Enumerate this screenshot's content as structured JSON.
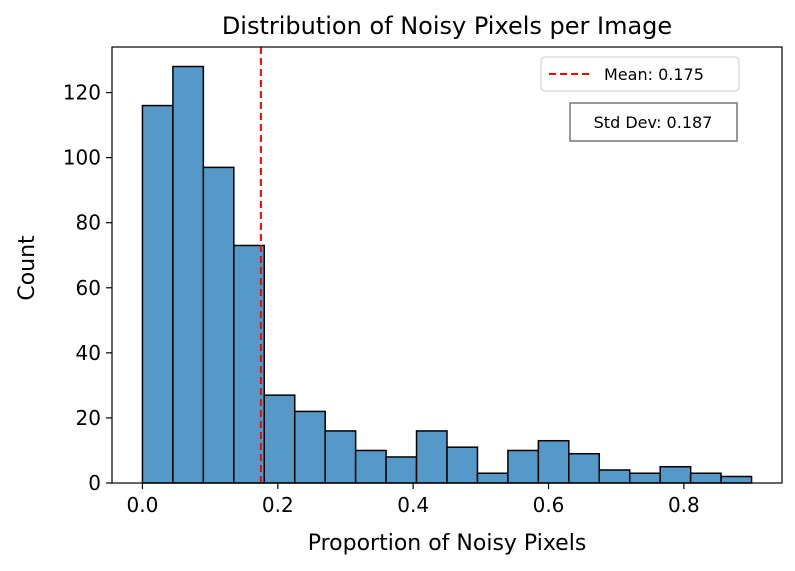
{
  "chart_data": {
    "type": "bar",
    "title": "Distribution of Noisy Pixels per Image",
    "xlabel": "Proportion of Noisy Pixels",
    "ylabel": "Count",
    "xlim": [
      -0.045,
      0.945
    ],
    "ylim": [
      0,
      134
    ],
    "xticks": [
      0.0,
      0.2,
      0.4,
      0.6,
      0.8
    ],
    "xtick_labels": [
      "0.0",
      "0.2",
      "0.4",
      "0.6",
      "0.8"
    ],
    "yticks": [
      0,
      20,
      40,
      60,
      80,
      100,
      120
    ],
    "ytick_labels": [
      "0",
      "20",
      "40",
      "60",
      "80",
      "100",
      "120"
    ],
    "bin_edges": [
      0.0,
      0.045,
      0.09,
      0.135,
      0.18,
      0.225,
      0.27,
      0.315,
      0.36,
      0.405,
      0.45,
      0.495,
      0.54,
      0.585,
      0.63,
      0.675,
      0.72,
      0.765,
      0.81,
      0.855,
      0.9
    ],
    "values": [
      116,
      128,
      97,
      73,
      27,
      22,
      16,
      10,
      8,
      16,
      11,
      3,
      10,
      13,
      9,
      4,
      3,
      5,
      3,
      2
    ],
    "bar_color": "#5499c7",
    "mean": 0.175,
    "mean_color": "#ff0000",
    "legend": {
      "label": "Mean: 0.175",
      "placement": "top-right"
    },
    "annotation": "Std Dev: 0.187",
    "grid": false
  }
}
